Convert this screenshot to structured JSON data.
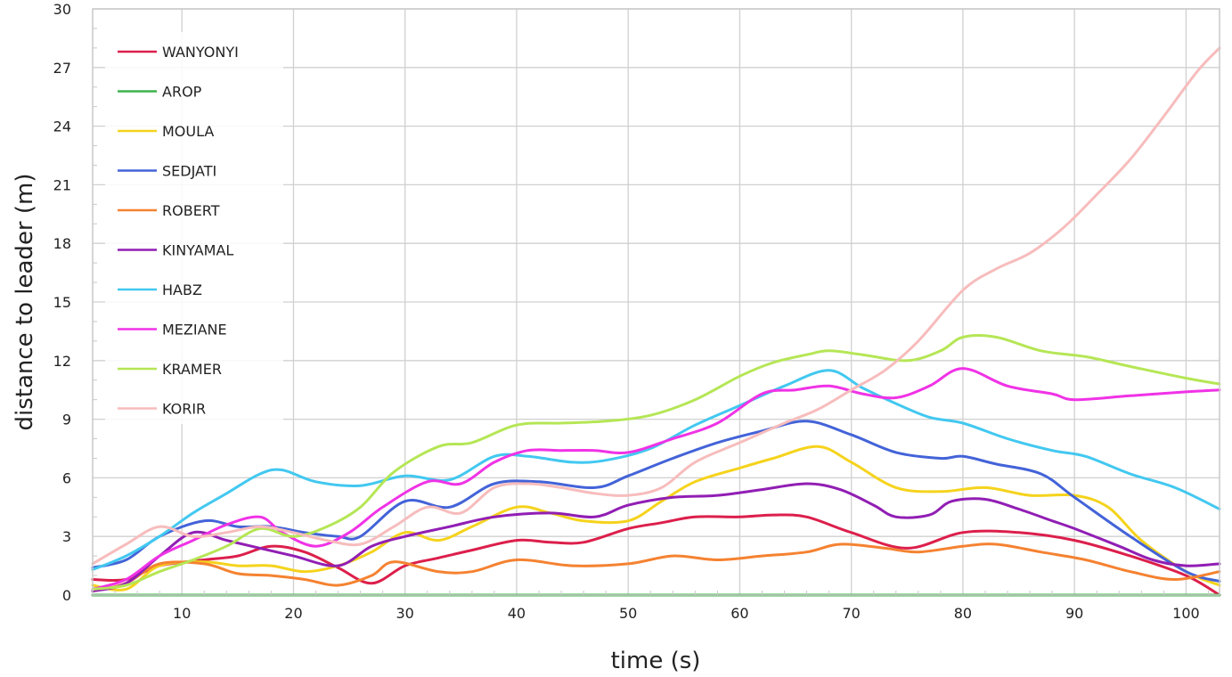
{
  "chart_data": {
    "type": "line",
    "xlabel": "time (s)",
    "ylabel": "distance to leader (m)",
    "xlim": [
      2,
      103
    ],
    "ylim": [
      0,
      30
    ],
    "x_ticks": [
      10,
      20,
      30,
      40,
      50,
      60,
      70,
      80,
      90,
      100
    ],
    "y_ticks": [
      0,
      3,
      6,
      9,
      12,
      15,
      18,
      21,
      24,
      27,
      30
    ],
    "grid": true,
    "legend_position": "top-left",
    "series": [
      {
        "name": "WANYONYI",
        "color": "#dc1f4b",
        "x": [
          2,
          5,
          8,
          12,
          15,
          18,
          21,
          24,
          27,
          30,
          33,
          36,
          40,
          43,
          46,
          50,
          53,
          56,
          60,
          63,
          66,
          70,
          75,
          80,
          85,
          90,
          95,
          100,
          103
        ],
        "y": [
          0.8,
          0.8,
          1.5,
          1.8,
          2.0,
          2.5,
          2.2,
          1.4,
          0.6,
          1.5,
          1.9,
          2.3,
          2.8,
          2.7,
          2.7,
          3.4,
          3.7,
          4.0,
          4.0,
          4.1,
          4.0,
          3.2,
          2.4,
          3.2,
          3.2,
          2.8,
          2.0,
          1.0,
          0.0
        ]
      },
      {
        "name": "AROP",
        "color": "#3cb44b",
        "x": [
          2,
          103
        ],
        "y": [
          0,
          0
        ]
      },
      {
        "name": "MOULA",
        "color": "#f5d31c",
        "x": [
          2,
          5,
          8,
          12,
          15,
          18,
          21,
          24,
          27,
          30,
          33,
          36,
          40,
          43,
          46,
          50,
          53,
          56,
          60,
          63,
          67,
          70,
          74,
          78,
          82,
          86,
          90,
          93,
          96,
          100,
          103
        ],
        "y": [
          0.5,
          0.3,
          1.5,
          1.7,
          1.5,
          1.5,
          1.2,
          1.5,
          2.2,
          3.2,
          2.8,
          3.5,
          4.5,
          4.2,
          3.8,
          3.8,
          4.8,
          5.8,
          6.5,
          7.0,
          7.6,
          6.8,
          5.5,
          5.3,
          5.5,
          5.1,
          5.1,
          4.5,
          2.8,
          1.2,
          0.5
        ]
      },
      {
        "name": "SEDJATI",
        "color": "#4363d8",
        "x": [
          2,
          5,
          8,
          12,
          15,
          18,
          21,
          24,
          26,
          30,
          34,
          38,
          42,
          47,
          50,
          54,
          58,
          62,
          66,
          70,
          74,
          78,
          80,
          83,
          87,
          90,
          95,
          100,
          103
        ],
        "y": [
          1.4,
          1.8,
          3.0,
          3.8,
          3.5,
          3.5,
          3.2,
          3.0,
          3.0,
          4.8,
          4.5,
          5.7,
          5.8,
          5.5,
          6.1,
          7.0,
          7.8,
          8.4,
          8.9,
          8.2,
          7.3,
          7.0,
          7.1,
          6.7,
          6.2,
          5.0,
          3.0,
          1.2,
          0.7
        ]
      },
      {
        "name": "ROBERT",
        "color": "#f58231",
        "x": [
          2,
          5,
          8,
          12,
          15,
          18,
          21,
          24,
          27,
          29,
          33,
          36,
          40,
          45,
          50,
          54,
          58,
          62,
          66,
          69,
          73,
          76,
          80,
          83,
          87,
          91,
          95,
          99,
          103
        ],
        "y": [
          0.2,
          0.6,
          1.6,
          1.6,
          1.1,
          1.0,
          0.8,
          0.5,
          1.0,
          1.7,
          1.2,
          1.2,
          1.8,
          1.5,
          1.6,
          2.0,
          1.8,
          2.0,
          2.2,
          2.6,
          2.4,
          2.2,
          2.5,
          2.6,
          2.2,
          1.8,
          1.2,
          0.8,
          1.2
        ]
      },
      {
        "name": "KINYAMAL",
        "color": "#911eb4",
        "x": [
          2,
          5,
          8,
          11,
          14,
          17,
          20,
          24,
          27,
          30,
          34,
          38,
          43,
          47,
          50,
          54,
          58,
          62,
          66,
          69,
          72,
          74,
          77,
          79,
          82,
          85,
          88,
          90,
          94,
          97,
          100,
          103
        ],
        "y": [
          0.2,
          0.6,
          2.0,
          3.2,
          2.8,
          2.4,
          2.0,
          1.5,
          2.5,
          3.0,
          3.5,
          4.0,
          4.2,
          4.0,
          4.6,
          5.0,
          5.1,
          5.4,
          5.7,
          5.4,
          4.6,
          4.0,
          4.1,
          4.8,
          4.9,
          4.4,
          3.8,
          3.4,
          2.5,
          1.8,
          1.5,
          1.6
        ]
      },
      {
        "name": "HABZ",
        "color": "#42c8f0",
        "x": [
          2,
          5,
          8,
          11,
          14,
          17,
          19,
          22,
          26,
          30,
          34,
          38,
          41,
          45,
          48,
          52,
          56,
          60,
          64,
          68,
          71,
          74,
          77,
          80,
          84,
          88,
          91,
          95,
          99,
          103
        ],
        "y": [
          1.3,
          2.0,
          3.0,
          4.2,
          5.2,
          6.2,
          6.4,
          5.8,
          5.6,
          6.1,
          5.9,
          7.1,
          7.1,
          6.8,
          6.9,
          7.5,
          8.7,
          9.7,
          10.7,
          11.5,
          10.6,
          9.8,
          9.1,
          8.8,
          8.0,
          7.4,
          7.1,
          6.2,
          5.5,
          4.4
        ]
      },
      {
        "name": "MEZIANE",
        "color": "#f032e6",
        "x": [
          2,
          5,
          8,
          11,
          14,
          17,
          19,
          22,
          25,
          28,
          32,
          35,
          38,
          41,
          44,
          47,
          50,
          54,
          58,
          62,
          65,
          68,
          71,
          74,
          77,
          80,
          84,
          88,
          90,
          95,
          100,
          103
        ],
        "y": [
          0.3,
          0.8,
          2.0,
          2.8,
          3.6,
          4.0,
          3.2,
          2.5,
          3.2,
          4.5,
          5.8,
          5.7,
          6.8,
          7.4,
          7.4,
          7.4,
          7.3,
          8.0,
          8.8,
          10.3,
          10.5,
          10.7,
          10.3,
          10.1,
          10.7,
          11.6,
          10.7,
          10.3,
          10.0,
          10.2,
          10.4,
          10.5
        ]
      },
      {
        "name": "KRAMER",
        "color": "#b5e655",
        "x": [
          2,
          5,
          8,
          11,
          14,
          17,
          20,
          23,
          26,
          29,
          33,
          36,
          40,
          44,
          48,
          52,
          56,
          60,
          63,
          66,
          68,
          71,
          75,
          78,
          80,
          83,
          87,
          91,
          95,
          100,
          103
        ],
        "y": [
          0.3,
          0.5,
          1.2,
          1.8,
          2.5,
          3.4,
          3.0,
          3.5,
          4.5,
          6.3,
          7.6,
          7.8,
          8.7,
          8.8,
          8.9,
          9.2,
          10.0,
          11.2,
          11.9,
          12.3,
          12.5,
          12.3,
          12.0,
          12.5,
          13.2,
          13.2,
          12.5,
          12.2,
          11.7,
          11.1,
          10.8
        ]
      },
      {
        "name": "KORIR",
        "color": "#f7bcbc",
        "x": [
          2,
          5,
          8,
          11,
          14,
          17,
          20,
          23,
          26,
          29,
          32,
          35,
          38,
          41,
          44,
          47,
          50,
          53,
          56,
          60,
          64,
          67,
          70,
          73,
          76,
          80,
          83,
          86,
          89,
          92,
          95,
          98,
          101,
          103
        ],
        "y": [
          1.6,
          2.6,
          3.5,
          3.0,
          3.2,
          3.5,
          3.2,
          2.8,
          2.6,
          3.5,
          4.5,
          4.2,
          5.5,
          5.7,
          5.5,
          5.2,
          5.1,
          5.5,
          6.8,
          7.8,
          8.8,
          9.5,
          10.5,
          11.5,
          13.0,
          15.6,
          16.7,
          17.5,
          18.8,
          20.5,
          22.3,
          24.5,
          26.8,
          28.0
        ]
      }
    ]
  }
}
